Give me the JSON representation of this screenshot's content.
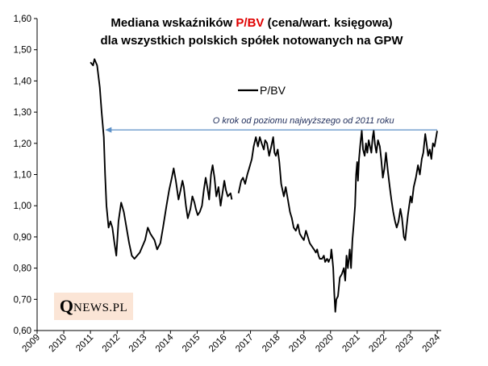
{
  "chart_data": {
    "type": "line",
    "title_line1_prefix": "Mediana wskaźników ",
    "title_highlight": "P/BV",
    "title_line1_suffix": " (cena/wart. księgowa)",
    "title_line2": "dla wszystkich polskich spółek notowanych na GPW",
    "highlight_color": "#e00000",
    "line_color": "#000000",
    "arrow_color": "#5b8fc6",
    "ylim": [
      0.6,
      1.6
    ],
    "yticks": [
      "0,60",
      "0,70",
      "0,80",
      "0,90",
      "1,00",
      "1,10",
      "1,20",
      "1,30",
      "1,40",
      "1,50",
      "1,60"
    ],
    "xlim": [
      2009,
      2024.15
    ],
    "xticks": [
      "2009",
      "2010",
      "2011",
      "2012",
      "2013",
      "2014",
      "2015",
      "2016",
      "2017",
      "2018",
      "2019",
      "2020",
      "2021",
      "2022",
      "2023",
      "2024"
    ],
    "legend": "P/BV",
    "annotation": {
      "text": "O krok od poziomu najwyższego od 2011 roku",
      "y": 1.243,
      "x_from": 2024.0,
      "x_to": 2011.55
    },
    "series": [
      {
        "name": "P/BV",
        "segments": [
          [
            [
              2011.0,
              1.46
            ],
            [
              2011.1,
              1.45
            ],
            [
              2011.15,
              1.47
            ],
            [
              2011.25,
              1.45
            ],
            [
              2011.35,
              1.38
            ],
            [
              2011.42,
              1.3
            ],
            [
              2011.5,
              1.22
            ],
            [
              2011.55,
              1.1
            ],
            [
              2011.6,
              1.0
            ],
            [
              2011.68,
              0.93
            ],
            [
              2011.75,
              0.95
            ],
            [
              2011.82,
              0.93
            ],
            [
              2011.9,
              0.88
            ],
            [
              2011.97,
              0.84
            ],
            [
              2012.05,
              0.95
            ],
            [
              2012.15,
              1.01
            ],
            [
              2012.25,
              0.98
            ],
            [
              2012.35,
              0.93
            ],
            [
              2012.45,
              0.88
            ],
            [
              2012.55,
              0.84
            ],
            [
              2012.65,
              0.83
            ],
            [
              2012.75,
              0.84
            ],
            [
              2012.85,
              0.85
            ],
            [
              2012.95,
              0.87
            ],
            [
              2013.05,
              0.89
            ],
            [
              2013.15,
              0.93
            ],
            [
              2013.25,
              0.91
            ],
            [
              2013.4,
              0.89
            ],
            [
              2013.5,
              0.86
            ],
            [
              2013.62,
              0.88
            ],
            [
              2013.72,
              0.93
            ],
            [
              2013.85,
              1.0
            ],
            [
              2013.95,
              1.05
            ],
            [
              2014.05,
              1.09
            ],
            [
              2014.12,
              1.12
            ],
            [
              2014.2,
              1.08
            ],
            [
              2014.3,
              1.02
            ],
            [
              2014.38,
              1.05
            ],
            [
              2014.45,
              1.08
            ],
            [
              2014.5,
              1.06
            ],
            [
              2014.58,
              1.0
            ],
            [
              2014.65,
              0.96
            ],
            [
              2014.75,
              0.99
            ],
            [
              2014.82,
              1.03
            ],
            [
              2014.9,
              1.01
            ],
            [
              2014.95,
              0.99
            ],
            [
              2015.02,
              0.97
            ],
            [
              2015.1,
              0.98
            ],
            [
              2015.18,
              1.0
            ],
            [
              2015.25,
              1.05
            ],
            [
              2015.32,
              1.09
            ],
            [
              2015.38,
              1.06
            ],
            [
              2015.45,
              1.02
            ],
            [
              2015.52,
              1.1
            ],
            [
              2015.58,
              1.13
            ],
            [
              2015.65,
              1.09
            ],
            [
              2015.72,
              1.03
            ],
            [
              2015.8,
              1.06
            ],
            [
              2015.88,
              1.0
            ],
            [
              2015.95,
              1.04
            ],
            [
              2016.02,
              1.08
            ],
            [
              2016.08,
              1.05
            ],
            [
              2016.15,
              1.03
            ],
            [
              2016.25,
              1.04
            ],
            [
              2016.3,
              1.02
            ]
          ],
          [
            [
              2016.55,
              1.04
            ],
            [
              2016.65,
              1.08
            ],
            [
              2016.72,
              1.09
            ],
            [
              2016.8,
              1.07
            ],
            [
              2016.88,
              1.1
            ],
            [
              2016.95,
              1.12
            ],
            [
              2017.05,
              1.15
            ],
            [
              2017.12,
              1.19
            ],
            [
              2017.2,
              1.22
            ],
            [
              2017.28,
              1.19
            ],
            [
              2017.35,
              1.22
            ],
            [
              2017.42,
              1.2
            ],
            [
              2017.5,
              1.18
            ],
            [
              2017.55,
              1.21
            ],
            [
              2017.62,
              1.2
            ],
            [
              2017.7,
              1.16
            ],
            [
              2017.78,
              1.19
            ],
            [
              2017.85,
              1.22
            ],
            [
              2017.9,
              1.17
            ],
            [
              2017.95,
              1.16
            ],
            [
              2018.02,
              1.18
            ],
            [
              2018.08,
              1.14
            ],
            [
              2018.15,
              1.07
            ],
            [
              2018.25,
              1.03
            ],
            [
              2018.32,
              1.06
            ],
            [
              2018.4,
              1.02
            ],
            [
              2018.48,
              0.98
            ],
            [
              2018.55,
              0.96
            ],
            [
              2018.62,
              0.93
            ],
            [
              2018.7,
              0.92
            ],
            [
              2018.78,
              0.94
            ],
            [
              2018.85,
              0.91
            ],
            [
              2018.92,
              0.9
            ],
            [
              2019.0,
              0.89
            ],
            [
              2019.08,
              0.92
            ],
            [
              2019.15,
              0.9
            ],
            [
              2019.22,
              0.88
            ],
            [
              2019.3,
              0.87
            ],
            [
              2019.38,
              0.86
            ],
            [
              2019.45,
              0.85
            ],
            [
              2019.5,
              0.86
            ],
            [
              2019.55,
              0.84
            ],
            [
              2019.6,
              0.83
            ],
            [
              2019.68,
              0.83
            ],
            [
              2019.75,
              0.84
            ],
            [
              2019.8,
              0.82
            ],
            [
              2019.87,
              0.83
            ],
            [
              2019.93,
              0.82
            ],
            [
              2019.97,
              0.83
            ]
          ],
          [
            [
              2020.0,
              0.83
            ],
            [
              2020.03,
              0.86
            ],
            [
              2020.06,
              0.84
            ],
            [
              2020.1,
              0.8
            ],
            [
              2020.14,
              0.72
            ],
            [
              2020.18,
              0.66
            ],
            [
              2020.22,
              0.7
            ],
            [
              2020.28,
              0.71
            ],
            [
              2020.35,
              0.77
            ],
            [
              2020.42,
              0.78
            ],
            [
              2020.5,
              0.8
            ],
            [
              2020.55,
              0.76
            ],
            [
              2020.6,
              0.84
            ],
            [
              2020.65,
              0.8
            ],
            [
              2020.72,
              0.86
            ],
            [
              2020.77,
              0.8
            ],
            [
              2020.82,
              0.89
            ],
            [
              2020.87,
              0.94
            ],
            [
              2020.92,
              1.0
            ],
            [
              2020.96,
              1.1
            ],
            [
              2021.0,
              1.14
            ],
            [
              2021.03,
              1.08
            ],
            [
              2021.07,
              1.15
            ],
            [
              2021.12,
              1.2
            ],
            [
              2021.17,
              1.24
            ],
            [
              2021.22,
              1.18
            ],
            [
              2021.28,
              1.16
            ],
            [
              2021.33,
              1.2
            ],
            [
              2021.38,
              1.17
            ],
            [
              2021.43,
              1.21
            ],
            [
              2021.48,
              1.19
            ],
            [
              2021.53,
              1.17
            ],
            [
              2021.58,
              1.22
            ],
            [
              2021.62,
              1.24
            ],
            [
              2021.66,
              1.2
            ],
            [
              2021.72,
              1.17
            ],
            [
              2021.78,
              1.21
            ],
            [
              2021.85,
              1.19
            ],
            [
              2021.9,
              1.15
            ],
            [
              2021.96,
              1.09
            ],
            [
              2022.02,
              1.12
            ],
            [
              2022.08,
              1.17
            ],
            [
              2022.15,
              1.11
            ],
            [
              2022.22,
              1.06
            ],
            [
              2022.28,
              1.02
            ],
            [
              2022.35,
              0.98
            ],
            [
              2022.42,
              0.95
            ],
            [
              2022.48,
              0.93
            ],
            [
              2022.55,
              0.95
            ],
            [
              2022.62,
              0.99
            ],
            [
              2022.68,
              0.96
            ],
            [
              2022.75,
              0.9
            ],
            [
              2022.8,
              0.89
            ],
            [
              2022.85,
              0.93
            ],
            [
              2022.9,
              0.97
            ],
            [
              2022.95,
              1.0
            ],
            [
              2023.0,
              1.03
            ],
            [
              2023.05,
              1.01
            ],
            [
              2023.12,
              1.06
            ],
            [
              2023.2,
              1.09
            ],
            [
              2023.28,
              1.13
            ],
            [
              2023.35,
              1.1
            ],
            [
              2023.42,
              1.15
            ],
            [
              2023.48,
              1.17
            ],
            [
              2023.55,
              1.23
            ],
            [
              2023.6,
              1.2
            ],
            [
              2023.66,
              1.16
            ],
            [
              2023.72,
              1.18
            ],
            [
              2023.78,
              1.15
            ],
            [
              2023.84,
              1.2
            ],
            [
              2023.9,
              1.19
            ],
            [
              2023.96,
              1.22
            ],
            [
              2024.0,
              1.24
            ]
          ]
        ]
      }
    ]
  },
  "brand": {
    "letter": "Q",
    "rest": "NEWS.PL",
    "background": "#fbe5d6"
  }
}
